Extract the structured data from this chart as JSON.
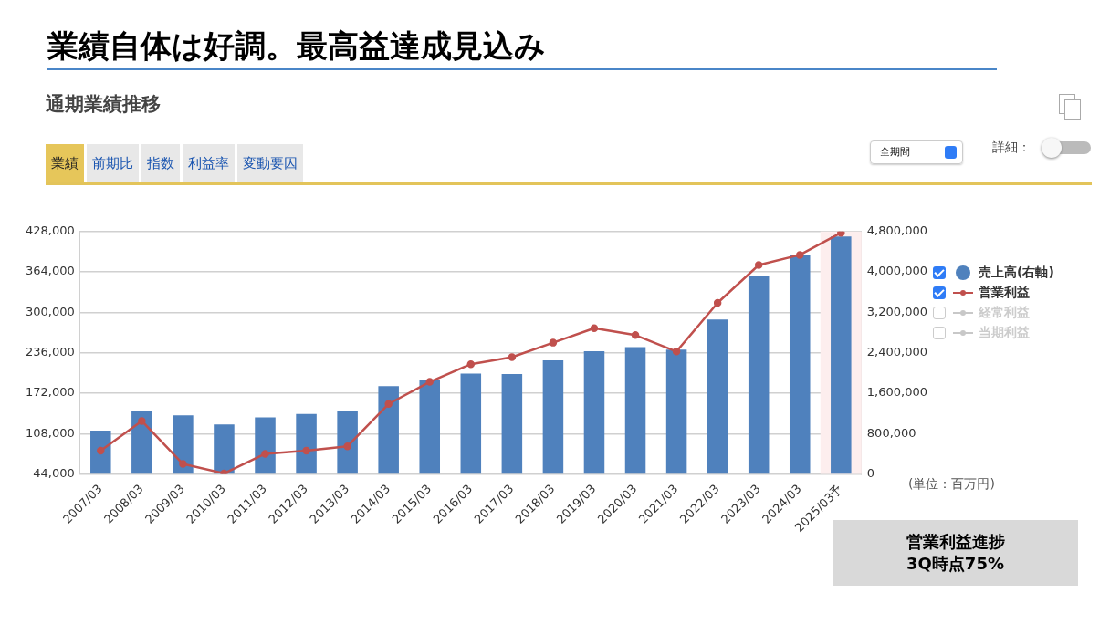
{
  "chart_data": {
    "type": "bar",
    "title": "業績自体は好調。最高益達成見込み",
    "subtitle": "通期業績推移",
    "categories": [
      "2007/03",
      "2008/03",
      "2009/03",
      "2010/03",
      "2011/03",
      "2012/03",
      "2013/03",
      "2014/03",
      "2015/03",
      "2016/03",
      "2017/03",
      "2018/03",
      "2019/03",
      "2020/03",
      "2021/03",
      "2022/03",
      "2023/03",
      "2024/03",
      "2025/03予"
    ],
    "series": [
      {
        "name": "売上高(右軸)",
        "axis": "y2",
        "color": "#4f81bd",
        "values": [
          860000,
          1240000,
          1160000,
          980000,
          1120000,
          1190000,
          1250000,
          1740000,
          1870000,
          1990000,
          1980000,
          2250000,
          2430000,
          2510000,
          2460000,
          3060000,
          3930000,
          4330000,
          4700000
        ]
      },
      {
        "name": "営業利益",
        "type": "line",
        "color": "#c0504d",
        "marker": "circle",
        "values": [
          81000,
          128000,
          60000,
          45000,
          76000,
          81000,
          88000,
          155000,
          190000,
          218000,
          229000,
          252000,
          275000,
          264000,
          238000,
          315000,
          375000,
          391000,
          426000
        ]
      },
      {
        "name": "経常利益",
        "type": "line",
        "color": "#c8c8c8",
        "marker": "circle",
        "values": [
          null,
          null,
          null,
          null,
          null,
          null,
          null,
          null,
          null,
          null,
          null,
          null,
          null,
          null,
          null,
          null,
          null,
          null,
          null
        ]
      },
      {
        "name": "当期利益",
        "type": "line",
        "color": "#c8c8c8",
        "marker": "circle",
        "values": [
          null,
          null,
          null,
          null,
          null,
          null,
          null,
          null,
          null,
          null,
          null,
          null,
          null,
          null,
          null,
          null,
          null,
          null,
          null
        ]
      }
    ],
    "ylim": [
      44000,
      428000
    ],
    "yticks": [
      {
        "value": 44000,
        "label": "44,000"
      },
      {
        "value": 108000,
        "label": "108,000"
      },
      {
        "value": 172000,
        "label": "172,000"
      },
      {
        "value": 236000,
        "label": "236,000"
      },
      {
        "value": 300000,
        "label": "300,000"
      },
      {
        "value": 364000,
        "label": "364,000"
      },
      {
        "value": 428000,
        "label": "428,000"
      }
    ],
    "y2lim": [
      0,
      4800000
    ],
    "y2ticks": [
      0,
      {
        "value": 800000,
        "label": "800,000"
      },
      {
        "value": 1600000,
        "label": "1,600,000"
      },
      {
        "value": 2400000,
        "label": "2,400,000"
      },
      {
        "value": 3200000,
        "label": "3,200,000"
      },
      {
        "value": 4000000,
        "label": "4,000,000"
      },
      {
        "value": 4800000,
        "label": "4,800,000"
      }
    ],
    "bands": [
      {
        "axis": "x",
        "from": "2025/03予",
        "to": "2025/03予",
        "color": "#fdeeee"
      }
    ],
    "grid": "y",
    "legend": "right",
    "annotations": [
      "業績",
      "前期比",
      "指数",
      "利益率",
      "変動要因",
      "全期間",
      "詳細：",
      "(単位：百万円)",
      "営業利益進捗\n3Q時点75%"
    ]
  }
}
